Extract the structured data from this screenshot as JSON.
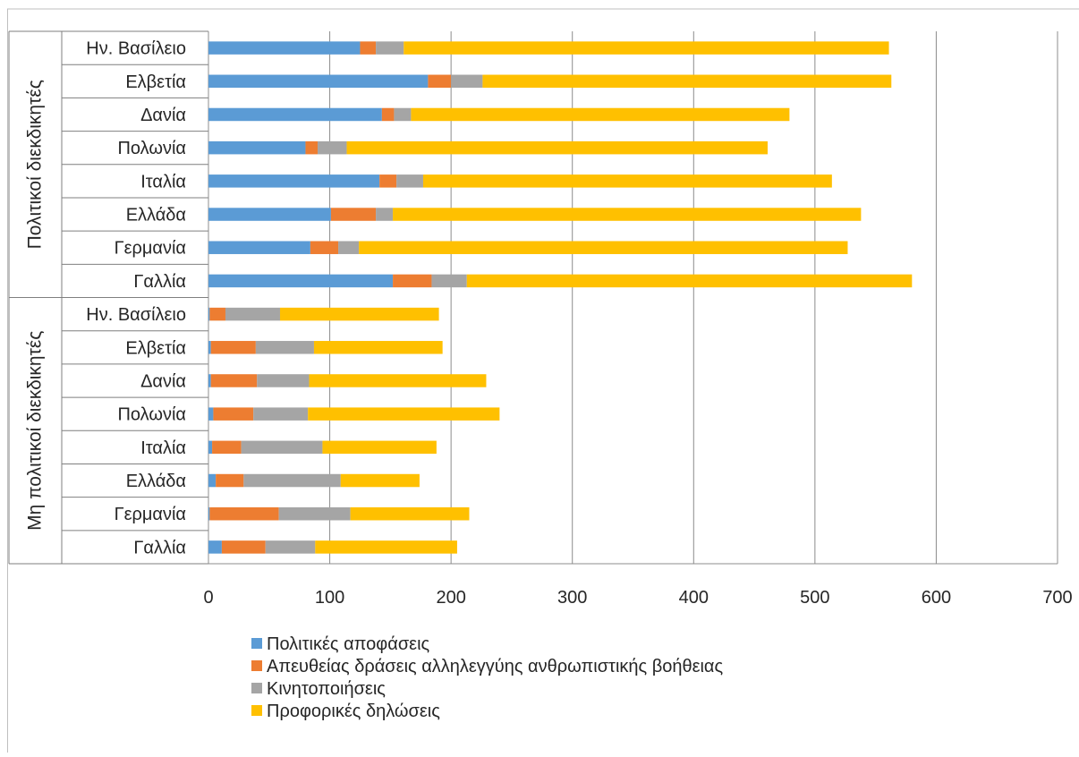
{
  "chart_data": {
    "type": "bar",
    "orientation": "horizontal",
    "stacked": true,
    "title": "",
    "xlabel": "",
    "ylabel": "",
    "xlim": [
      0,
      700
    ],
    "x_ticks": [
      0,
      100,
      200,
      300,
      400,
      500,
      600,
      700
    ],
    "grid": true,
    "legend_position": "bottom",
    "groups": [
      {
        "label": "Πολιτικοί διεκδικητές",
        "categories": [
          "Ην. Βασίλειο",
          "Ελβετία",
          "Δανία",
          "Πολωνία",
          "Ιταλία",
          "Ελλάδα",
          "Γερμανία",
          "Γαλλία"
        ]
      },
      {
        "label": "Μη πολιτικοί διεκδικητές",
        "categories": [
          "Ην. Βασίλειο",
          "Ελβετία",
          "Δανία",
          "Πολωνία",
          "Ιταλία",
          "Ελλάδα",
          "Γερμανία",
          "Γαλλία"
        ]
      }
    ],
    "series": [
      {
        "name": "Πολιτικές αποφάσεις",
        "color": "#5B9BD5",
        "values": [
          125,
          181,
          143,
          80,
          141,
          101,
          84,
          152,
          1,
          2,
          2,
          4,
          3,
          6,
          1,
          11
        ]
      },
      {
        "name": "Απευθείας δράσεις  αλληλεγγύης ανθρωπιστικής βοήθειας",
        "color": "#ED7D31",
        "values": [
          13,
          19,
          10,
          10,
          14,
          37,
          23,
          32,
          13,
          37,
          38,
          33,
          24,
          23,
          57,
          36
        ]
      },
      {
        "name": "Κινητοποιήσεις",
        "color": "#A5A5A5",
        "values": [
          23,
          26,
          14,
          24,
          22,
          14,
          17,
          29,
          45,
          48,
          43,
          45,
          67,
          80,
          59,
          41
        ]
      },
      {
        "name": "Προφορικές δηλώσεις",
        "color": "#FFC000",
        "values": [
          400,
          337,
          312,
          347,
          337,
          386,
          403,
          367,
          131,
          106,
          146,
          158,
          94,
          65,
          98,
          117
        ]
      }
    ]
  }
}
